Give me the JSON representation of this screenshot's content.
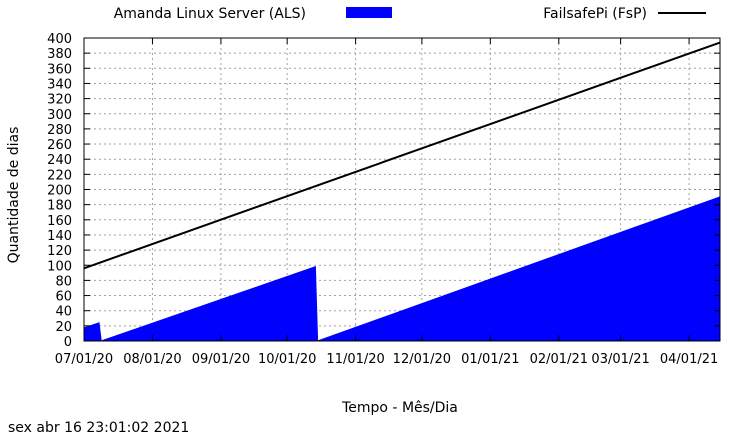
{
  "chart_data": {
    "type": "area",
    "xlabel": "Tempo - Mês/Dia",
    "ylabel": "Quantidade de dias",
    "ylim": [
      0,
      400
    ],
    "yticks": [
      0,
      20,
      40,
      60,
      80,
      100,
      120,
      140,
      160,
      180,
      200,
      220,
      240,
      260,
      280,
      300,
      320,
      340,
      360,
      380,
      400
    ],
    "xlim": [
      "2020-07-01",
      "2021-04-15"
    ],
    "xticks": [
      {
        "date": "2020-07-01",
        "label": "07/01/20"
      },
      {
        "date": "2020-08-01",
        "label": "08/01/20"
      },
      {
        "date": "2020-09-01",
        "label": "09/01/20"
      },
      {
        "date": "2020-10-01",
        "label": "10/01/20"
      },
      {
        "date": "2020-11-01",
        "label": "11/01/20"
      },
      {
        "date": "2020-12-01",
        "label": "12/01/20"
      },
      {
        "date": "2021-01-01",
        "label": "01/01/21"
      },
      {
        "date": "2021-02-01",
        "label": "02/01/21"
      },
      {
        "date": "2021-03-01",
        "label": "03/01/21"
      },
      {
        "date": "2021-04-01",
        "label": "04/01/21"
      }
    ],
    "grid": true,
    "legend_position": "top",
    "series": [
      {
        "name": "Amanda Linux Server (ALS)",
        "style": "filled-area",
        "color": "#0000ff",
        "points": [
          {
            "x": "2020-07-01",
            "y": 18
          },
          {
            "x": "2020-07-08",
            "y": 25
          },
          {
            "x": "2020-07-09",
            "y": 1
          },
          {
            "x": "2020-10-14",
            "y": 99
          },
          {
            "x": "2020-10-15",
            "y": 1
          },
          {
            "x": "2021-04-15",
            "y": 191
          }
        ]
      },
      {
        "name": "FailsafePi (FsP)",
        "style": "line",
        "color": "#000000",
        "points": [
          {
            "x": "2020-07-01",
            "y": 96
          },
          {
            "x": "2021-04-15",
            "y": 394
          }
        ]
      }
    ]
  },
  "footer": {
    "timestamp": "sex abr 16 23:01:02 2021"
  }
}
